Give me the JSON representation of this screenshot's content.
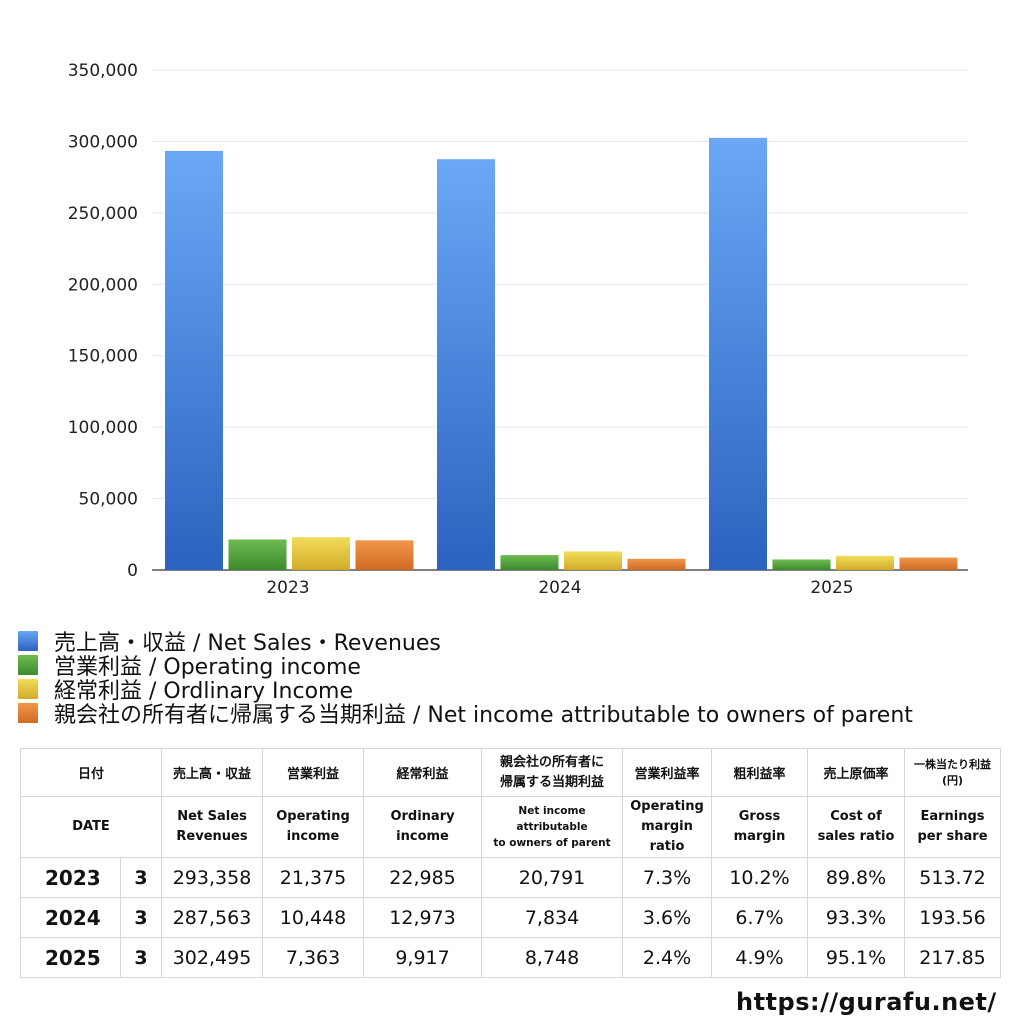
{
  "chart_data": {
    "type": "bar",
    "categories": [
      "2023",
      "2024",
      "2025"
    ],
    "series": [
      {
        "name": "売上高・収益 / Net Sales・Revenues",
        "values": [
          293358,
          287563,
          302495
        ],
        "color": "#3f7fe0"
      },
      {
        "name": "営業利益 / Operating income",
        "values": [
          21375,
          10448,
          7363
        ],
        "color": "#4f9f3a"
      },
      {
        "name": "経常利益 / Ordlinary Income",
        "values": [
          22985,
          12973,
          9917
        ],
        "color": "#e2c23a"
      },
      {
        "name": "親会社の所有者に帰属する当期利益 / Net income attributable to owners of parent",
        "values": [
          20791,
          7834,
          8748
        ],
        "color": "#de7a2e"
      }
    ],
    "yticks": [
      "0",
      "50,000",
      "100,000",
      "150,000",
      "200,000",
      "250,000",
      "300,000",
      "350,000"
    ],
    "ylim": [
      0,
      350000
    ],
    "grid": true,
    "legend_position": "bottom"
  },
  "table": {
    "headers_ja": [
      "日付",
      "売上高・収益",
      "営業利益",
      "経常利益",
      "親会社の所有者に\n帰属する当期利益",
      "営業利益率",
      "粗利益率",
      "売上原価率",
      "一株当たり利益\n(円)"
    ],
    "headers_en": [
      "DATE",
      "Net Sales\nRevenues",
      "Operating\nincome",
      "Ordinary\nincome",
      "Net income attributable\nto owners of parent",
      "Operating\nmargin\nratio",
      "Gross\nmargin",
      "Cost of\nsales ratio",
      "Earnings\nper share"
    ],
    "rows": [
      [
        "2023",
        "3",
        "293,358",
        "21,375",
        "22,985",
        "20,791",
        "7.3%",
        "10.2%",
        "89.8%",
        "513.72"
      ],
      [
        "2024",
        "3",
        "287,563",
        "10,448",
        "12,973",
        "7,834",
        "3.6%",
        "6.7%",
        "93.3%",
        "193.56"
      ],
      [
        "2025",
        "3",
        "302,495",
        "7,363",
        "9,917",
        "8,748",
        "2.4%",
        "4.9%",
        "95.1%",
        "217.85"
      ]
    ]
  },
  "site": "https://gurafu.net/"
}
